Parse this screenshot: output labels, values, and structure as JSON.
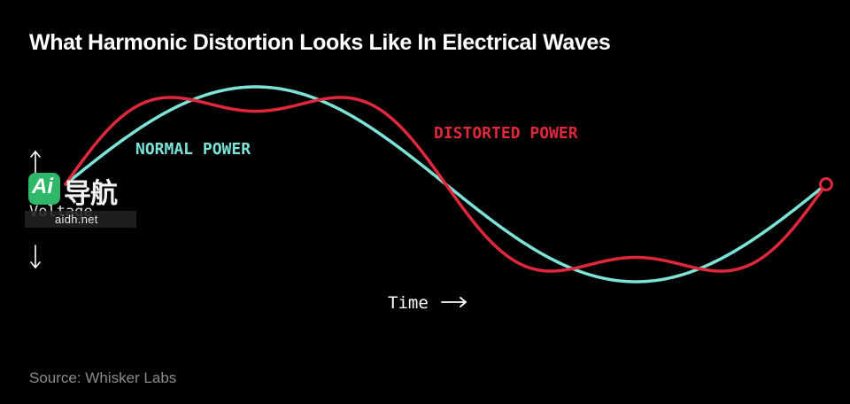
{
  "title": "What Harmonic Distortion Looks Like In Electrical Waves",
  "source": "Source: Whisker Labs",
  "watermark": {
    "logo_text": "Ai",
    "chinese_text": "导航",
    "url": "aidh.net"
  },
  "chart_data": {
    "type": "line",
    "xlabel": "Time",
    "ylabel": "Voltage",
    "series": [
      {
        "name": "NORMAL POWER",
        "color": "#7de3d8",
        "function": "sin(t)",
        "t_range": [
          0,
          6.2832
        ]
      },
      {
        "name": "DISTORTED POWER",
        "color": "#e0283c",
        "function": "sin(t) + 0.25*sin(3t)",
        "t_range": [
          0,
          6.2832
        ],
        "end_marker": "open-circle"
      }
    ]
  }
}
